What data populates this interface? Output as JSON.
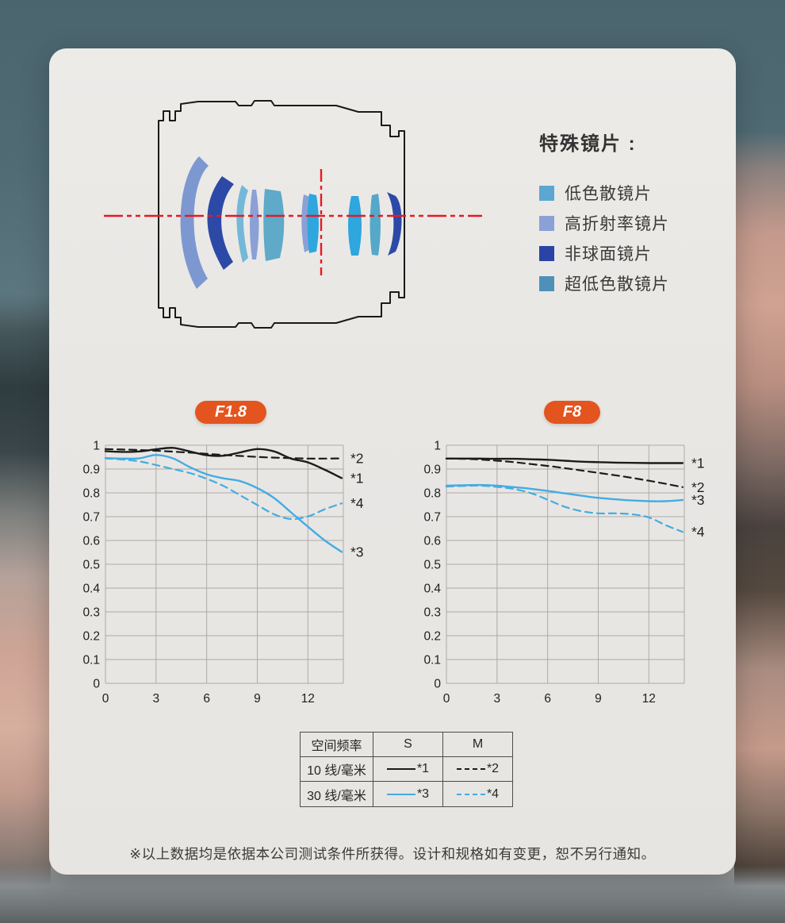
{
  "colors": {
    "badge": "#e4541e",
    "axis_red": "#e51a23",
    "barrel_outline": "#1a1a1a",
    "grid": "#adaaa7",
    "mtf_black": "#1c1c1c",
    "mtf_blue": "#44ace2"
  },
  "lens_diagram": {
    "legend_title": "特殊镜片 :",
    "legend_items": [
      {
        "label": "低色散镜片",
        "color": "#5ba7d2"
      },
      {
        "label": "高折射率镜片",
        "color": "#8ca0d8"
      },
      {
        "label": "非球面镜片",
        "color": "#2a43a4"
      },
      {
        "label": "超低色散镜片",
        "color": "#4e90b8"
      }
    ]
  },
  "chart_data": [
    {
      "type": "line",
      "title": "F1.8",
      "xlabel": "",
      "ylabel": "",
      "xlim": [
        0,
        14.1
      ],
      "ylim": [
        0,
        1
      ],
      "x_ticks": [
        0,
        3,
        6,
        9,
        12
      ],
      "y_ticks": [
        0,
        0.1,
        0.2,
        0.3,
        0.4,
        0.5,
        0.6,
        0.7,
        0.8,
        0.9,
        1
      ],
      "grid": true,
      "x": [
        0,
        1,
        2,
        3,
        4,
        5,
        6,
        7,
        8,
        9,
        10,
        11,
        12,
        13,
        14
      ],
      "series": [
        {
          "name": "*1",
          "meaning": "S 10 线/毫米",
          "color": "#1c1c1c",
          "dash": "solid",
          "values": [
            0.975,
            0.972,
            0.974,
            0.983,
            0.989,
            0.974,
            0.958,
            0.956,
            0.97,
            0.984,
            0.974,
            0.944,
            0.928,
            0.897,
            0.862
          ]
        },
        {
          "name": "*2",
          "meaning": "M 10 线/毫米",
          "color": "#1c1c1c",
          "dash": "dashed",
          "values": [
            0.984,
            0.982,
            0.98,
            0.977,
            0.973,
            0.969,
            0.964,
            0.959,
            0.955,
            0.951,
            0.948,
            0.946,
            0.944,
            0.944,
            0.945
          ]
        },
        {
          "name": "*3",
          "meaning": "S 30 线/毫米",
          "color": "#44ace2",
          "dash": "solid",
          "values": [
            0.946,
            0.944,
            0.945,
            0.959,
            0.945,
            0.908,
            0.878,
            0.861,
            0.849,
            0.82,
            0.778,
            0.718,
            0.658,
            0.6,
            0.552
          ]
        },
        {
          "name": "*4",
          "meaning": "M 30 线/毫米",
          "color": "#44ace2",
          "dash": "dashed",
          "values": [
            0.945,
            0.94,
            0.932,
            0.917,
            0.9,
            0.883,
            0.859,
            0.829,
            0.789,
            0.749,
            0.71,
            0.69,
            0.701,
            0.731,
            0.756
          ]
        }
      ]
    },
    {
      "type": "line",
      "title": "F8",
      "xlabel": "",
      "ylabel": "",
      "xlim": [
        0,
        14.1
      ],
      "ylim": [
        0,
        1
      ],
      "x_ticks": [
        0,
        3,
        6,
        9,
        12
      ],
      "y_ticks": [
        0,
        0.1,
        0.2,
        0.3,
        0.4,
        0.5,
        0.6,
        0.7,
        0.8,
        0.9,
        1
      ],
      "grid": true,
      "x": [
        0,
        1,
        2,
        3,
        4,
        5,
        6,
        7,
        8,
        9,
        10,
        11,
        12,
        13,
        14
      ],
      "series": [
        {
          "name": "*1",
          "meaning": "S 10 线/毫米",
          "color": "#1c1c1c",
          "dash": "solid",
          "values": [
            0.944,
            0.944,
            0.944,
            0.943,
            0.943,
            0.941,
            0.939,
            0.935,
            0.931,
            0.929,
            0.927,
            0.926,
            0.925,
            0.925,
            0.925
          ]
        },
        {
          "name": "*2",
          "meaning": "M 10 线/毫米",
          "color": "#1c1c1c",
          "dash": "dashed",
          "values": [
            0.944,
            0.943,
            0.94,
            0.935,
            0.929,
            0.921,
            0.913,
            0.904,
            0.894,
            0.884,
            0.874,
            0.863,
            0.851,
            0.838,
            0.824
          ]
        },
        {
          "name": "*3",
          "meaning": "S 30 线/毫米",
          "color": "#44ace2",
          "dash": "solid",
          "values": [
            0.83,
            0.832,
            0.833,
            0.83,
            0.824,
            0.817,
            0.808,
            0.798,
            0.788,
            0.779,
            0.773,
            0.768,
            0.765,
            0.765,
            0.77
          ]
        },
        {
          "name": "*4",
          "meaning": "M 30 线/毫米",
          "color": "#44ace2",
          "dash": "dashed",
          "values": [
            0.826,
            0.829,
            0.83,
            0.825,
            0.816,
            0.799,
            0.771,
            0.742,
            0.723,
            0.714,
            0.714,
            0.71,
            0.697,
            0.664,
            0.636
          ]
        }
      ]
    }
  ],
  "table": {
    "headers": [
      "空间频率",
      "S",
      "M"
    ],
    "rows": [
      {
        "freq": "10 线/毫米"
      },
      {
        "freq": "30 线/毫米"
      }
    ]
  },
  "footnote": "※以上数据均是依据本公司测试条件所获得。设计和规格如有变更，恕不另行通知。"
}
